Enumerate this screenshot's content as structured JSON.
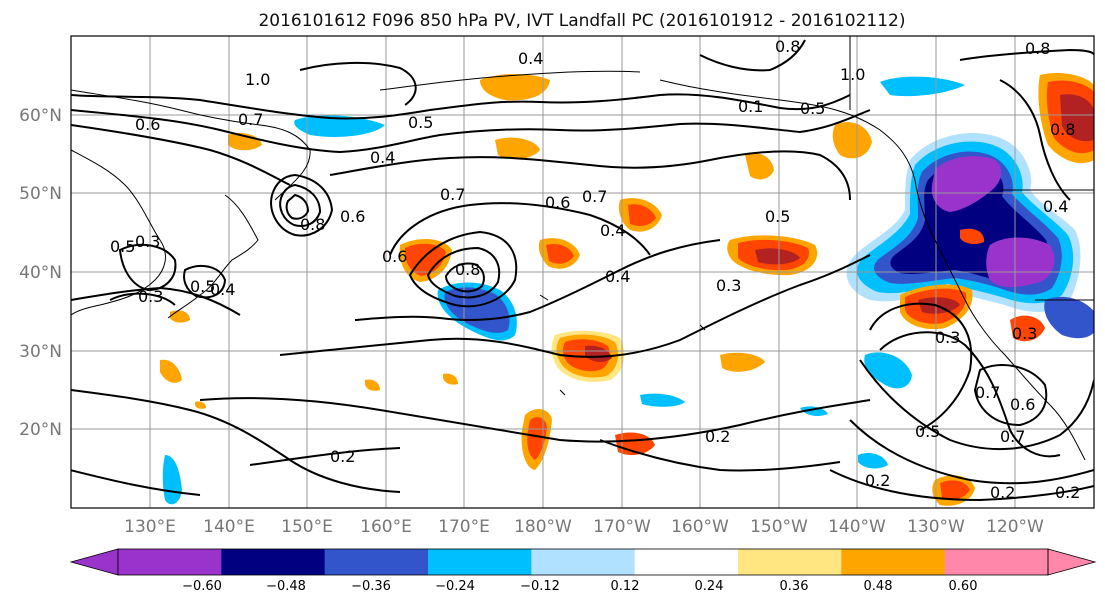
{
  "title": "2016101612 F096 850 hPa PV, IVT Landfall PC (2016101912 - 2016102112)",
  "lat_labels": [
    "60°N",
    "50°N",
    "40°N",
    "30°N",
    "20°N"
  ],
  "lon_labels": [
    "130°E",
    "140°E",
    "150°E",
    "160°E",
    "170°E",
    "180°W",
    "170°W",
    "160°W",
    "150°W",
    "140°W",
    "130°W",
    "120°W"
  ],
  "contour_labels": [
    {
      "text": "0.4"
    },
    {
      "text": "0.8"
    },
    {
      "text": "0.8"
    },
    {
      "text": "1.0"
    },
    {
      "text": "1.0"
    },
    {
      "text": "0.6"
    },
    {
      "text": "0.7"
    },
    {
      "text": "0.5"
    },
    {
      "text": "0.4"
    },
    {
      "text": "0.5"
    },
    {
      "text": "0.8"
    },
    {
      "text": "0.6"
    },
    {
      "text": "0.7"
    },
    {
      "text": "0.6"
    },
    {
      "text": "0.7"
    },
    {
      "text": "0.5"
    },
    {
      "text": "0.4"
    },
    {
      "text": "0.6"
    },
    {
      "text": "0.8"
    },
    {
      "text": "0.4"
    },
    {
      "text": "0.3"
    },
    {
      "text": "0.3"
    },
    {
      "text": "0.5"
    },
    {
      "text": "0.4"
    },
    {
      "text": "0.3"
    },
    {
      "text": "0.7"
    },
    {
      "text": "0.6"
    },
    {
      "text": "0.5"
    },
    {
      "text": "0.7"
    },
    {
      "text": "0.2"
    },
    {
      "text": "0.2"
    },
    {
      "text": "0.2"
    },
    {
      "text": "0.2"
    },
    {
      "text": "0.2"
    },
    {
      "text": "0.3"
    },
    {
      "text": "0.4"
    },
    {
      "text": "0.5"
    },
    {
      "text": "0.3"
    },
    {
      "text": "0.1"
    },
    {
      "text": "0.8"
    }
  ],
  "colorbar": {
    "ticks": [
      "−0.60",
      "−0.48",
      "−0.36",
      "−0.24",
      "−0.12",
      "0.12",
      "0.24",
      "0.36",
      "0.48",
      "0.60"
    ],
    "colors": [
      "#9933cc",
      "#000080",
      "#3355cc",
      "#00bfff",
      "#b0e2ff",
      "#ffffff",
      "#ffe680",
      "#ffa500",
      "#ff4500",
      "#b22222",
      "#ff88aa"
    ]
  },
  "shading_colors": {
    "purple": "#9933cc",
    "navy": "#000080",
    "blue": "#3355cc",
    "cyan": "#00bfff",
    "lightblue": "#b0e2ff",
    "yellow": "#ffe680",
    "orange": "#ffa500",
    "red": "#ff4500",
    "darkred": "#b22222"
  }
}
